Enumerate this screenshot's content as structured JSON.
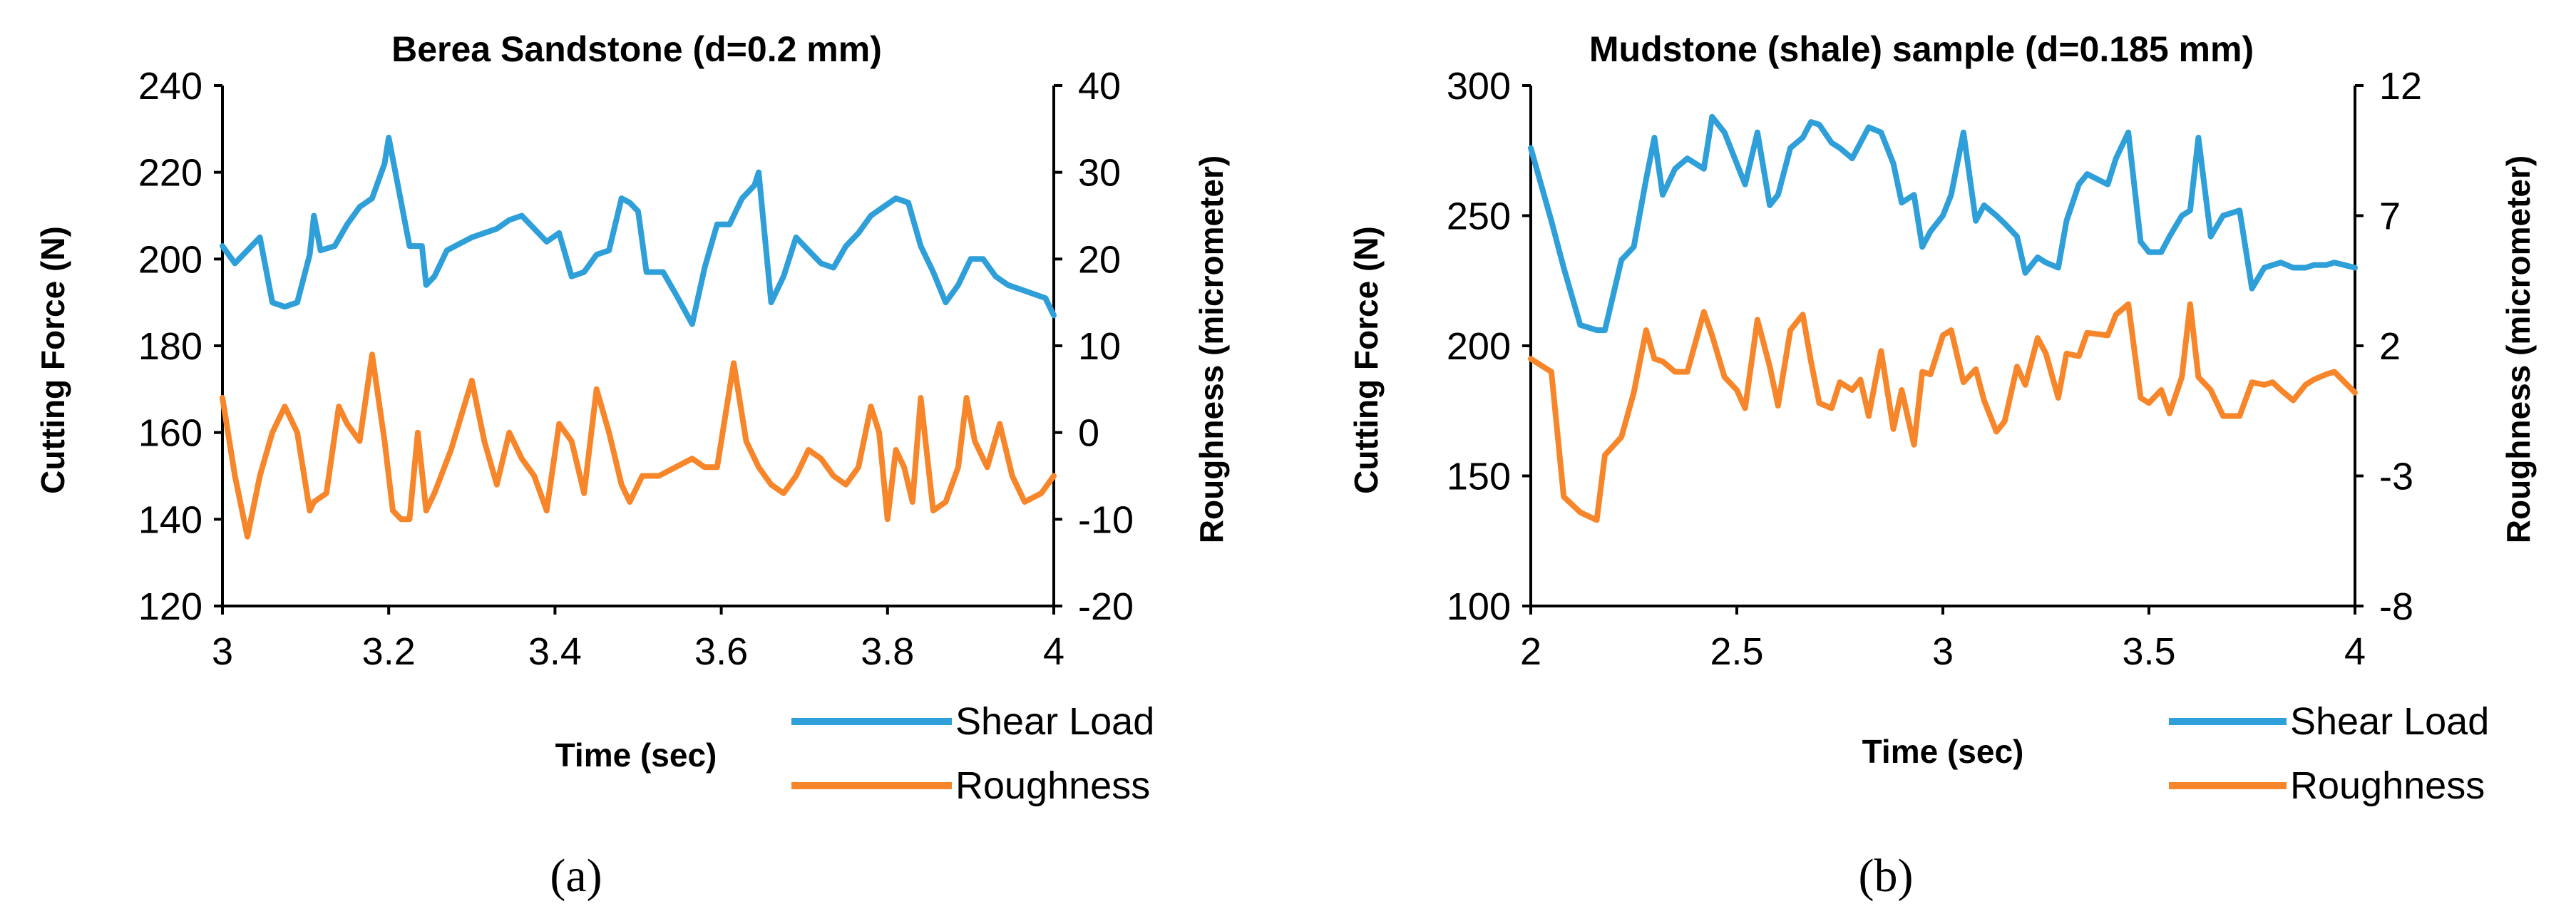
{
  "colors": {
    "shear": "#2e9fd9",
    "roughness": "#f7862a",
    "axis": "#000000"
  },
  "legend": {
    "shear_label": "Shear Load",
    "roughness_label": "Roughness"
  },
  "captions": [
    "(a)",
    "(b)"
  ],
  "chart_data": [
    {
      "type": "line",
      "title": "Berea Sandstone (d=0.2 mm)",
      "xlabel": "Time (sec)",
      "ylabel": "Cutting Force (N)",
      "y2label": "Roughness (micrometer)",
      "xlim": [
        3,
        4
      ],
      "ylim": [
        120,
        240
      ],
      "y2lim": [
        -20,
        40
      ],
      "xticks": [
        "3",
        "3.2",
        "3.4",
        "3.6",
        "3.8",
        "4"
      ],
      "xtick_values": [
        3,
        3.2,
        3.4,
        3.6,
        3.8,
        4
      ],
      "yticks": [
        120,
        140,
        160,
        180,
        200,
        220,
        240
      ],
      "y2ticks": [
        -20,
        -10,
        0,
        10,
        20,
        30,
        40
      ],
      "series": [
        {
          "name": "Shear Load",
          "axis": "left",
          "x": [
            3.0,
            3.015,
            3.03,
            3.045,
            3.06,
            3.075,
            3.09,
            3.105,
            3.11,
            3.118,
            3.135,
            3.15,
            3.165,
            3.18,
            3.195,
            3.2,
            3.21,
            3.225,
            3.24,
            3.245,
            3.255,
            3.27,
            3.3,
            3.33,
            3.345,
            3.36,
            3.375,
            3.39,
            3.405,
            3.42,
            3.435,
            3.45,
            3.465,
            3.48,
            3.49,
            3.5,
            3.51,
            3.515,
            3.53,
            3.545,
            3.565,
            3.58,
            3.595,
            3.61,
            3.625,
            3.64,
            3.645,
            3.66,
            3.675,
            3.69,
            3.705,
            3.72,
            3.735,
            3.75,
            3.765,
            3.78,
            3.795,
            3.81,
            3.825,
            3.84,
            3.855,
            3.87,
            3.885,
            3.9,
            3.915,
            3.93,
            3.945,
            3.96,
            3.975,
            3.99,
            4.0
          ],
          "y": [
            203,
            199,
            202,
            205,
            190,
            189,
            190,
            201,
            210,
            202,
            203,
            208,
            212,
            214,
            222,
            228,
            218,
            203,
            203,
            194,
            196,
            202,
            205,
            207,
            209,
            210,
            207,
            204,
            206,
            196,
            197,
            201,
            202,
            214,
            213,
            211,
            197,
            197,
            197,
            192,
            185,
            198,
            208,
            208,
            214,
            217,
            220,
            190,
            196,
            205,
            202,
            199,
            198,
            203,
            206,
            210,
            212,
            214,
            213,
            203,
            197,
            190,
            194,
            200,
            200,
            196,
            194,
            193,
            192,
            191,
            187
          ]
        },
        {
          "name": "Roughness",
          "axis": "right",
          "x": [
            3.0,
            3.015,
            3.03,
            3.045,
            3.06,
            3.075,
            3.09,
            3.105,
            3.11,
            3.125,
            3.14,
            3.15,
            3.165,
            3.18,
            3.195,
            3.205,
            3.215,
            3.225,
            3.235,
            3.245,
            3.255,
            3.275,
            3.3,
            3.315,
            3.33,
            3.345,
            3.36,
            3.375,
            3.39,
            3.405,
            3.42,
            3.435,
            3.45,
            3.465,
            3.48,
            3.49,
            3.505,
            3.525,
            3.545,
            3.565,
            3.58,
            3.595,
            3.615,
            3.63,
            3.645,
            3.66,
            3.675,
            3.69,
            3.705,
            3.72,
            3.735,
            3.75,
            3.765,
            3.78,
            3.79,
            3.8,
            3.81,
            3.82,
            3.83,
            3.84,
            3.855,
            3.87,
            3.885,
            3.895,
            3.905,
            3.92,
            3.935,
            3.95,
            3.965,
            3.985,
            4.0
          ],
          "y": [
            4,
            -5,
            -12,
            -5,
            0,
            3,
            0,
            -9,
            -8,
            -7,
            3,
            1,
            -1,
            9,
            -1,
            -9,
            -10,
            -10,
            0,
            -9,
            -7,
            -2,
            6,
            -1,
            -6,
            0,
            -3,
            -5,
            -9,
            1,
            -1,
            -7,
            5,
            0,
            -6,
            -8,
            -5,
            -5,
            -4,
            -3,
            -4,
            -4,
            8,
            -1,
            -4,
            -6,
            -7,
            -5,
            -2,
            -3,
            -5,
            -6,
            -4,
            3,
            0,
            -10,
            -2,
            -4,
            -8,
            4,
            -9,
            -8,
            -4,
            4,
            -1,
            -4,
            1,
            -5,
            -8,
            -7,
            -5
          ]
        }
      ]
    },
    {
      "type": "line",
      "title": "Mudstone (shale) sample (d=0.185 mm)",
      "xlabel": "Time (sec)",
      "ylabel": "Cutting Force (N)",
      "y2label": "Roughness (micrometer)",
      "xlim": [
        2,
        4
      ],
      "ylim": [
        100,
        300
      ],
      "y2lim": [
        -8,
        12
      ],
      "xticks": [
        "2",
        "2.5",
        "3",
        "3.5",
        "4"
      ],
      "xtick_values": [
        2,
        2.5,
        3,
        3.5,
        4
      ],
      "yticks": [
        100,
        150,
        200,
        250,
        300
      ],
      "y2ticks": [
        -8,
        -3,
        2,
        7,
        12
      ],
      "series": [
        {
          "name": "Shear Load",
          "axis": "left",
          "x": [
            2.0,
            2.05,
            2.08,
            2.12,
            2.16,
            2.18,
            2.22,
            2.25,
            2.28,
            2.3,
            2.32,
            2.35,
            2.38,
            2.42,
            2.44,
            2.47,
            2.5,
            2.52,
            2.55,
            2.58,
            2.6,
            2.63,
            2.66,
            2.68,
            2.7,
            2.73,
            2.75,
            2.78,
            2.8,
            2.82,
            2.85,
            2.88,
            2.9,
            2.93,
            2.95,
            2.97,
            3.0,
            3.02,
            3.05,
            3.08,
            3.1,
            3.13,
            3.15,
            3.18,
            3.2,
            3.23,
            3.25,
            3.28,
            3.3,
            3.33,
            3.35,
            3.4,
            3.42,
            3.45,
            3.48,
            3.5,
            3.53,
            3.55,
            3.58,
            3.6,
            3.62,
            3.65,
            3.68,
            3.72,
            3.75,
            3.78,
            3.8,
            3.82,
            3.85,
            3.88,
            3.9,
            3.93,
            3.95,
            4.0
          ],
          "y": [
            276,
            248,
            230,
            208,
            206,
            206,
            233,
            238,
            264,
            280,
            258,
            268,
            272,
            268,
            288,
            282,
            270,
            262,
            282,
            254,
            258,
            276,
            280,
            286,
            285,
            278,
            276,
            272,
            278,
            284,
            282,
            270,
            255,
            258,
            238,
            244,
            250,
            258,
            282,
            248,
            254,
            250,
            247,
            242,
            228,
            234,
            232,
            230,
            248,
            262,
            266,
            262,
            272,
            282,
            240,
            236,
            236,
            242,
            250,
            252,
            280,
            242,
            250,
            252,
            222,
            230,
            231,
            232,
            230,
            230,
            231,
            231,
            232,
            230
          ]
        },
        {
          "name": "Roughness",
          "axis": "right",
          "x": [
            2.0,
            2.05,
            2.08,
            2.12,
            2.16,
            2.18,
            2.22,
            2.25,
            2.28,
            2.3,
            2.32,
            2.35,
            2.38,
            2.42,
            2.44,
            2.47,
            2.5,
            2.52,
            2.55,
            2.58,
            2.6,
            2.63,
            2.66,
            2.68,
            2.7,
            2.73,
            2.75,
            2.78,
            2.8,
            2.82,
            2.85,
            2.88,
            2.9,
            2.93,
            2.95,
            2.97,
            3.0,
            3.02,
            3.05,
            3.08,
            3.1,
            3.13,
            3.15,
            3.18,
            3.2,
            3.23,
            3.25,
            3.28,
            3.3,
            3.33,
            3.35,
            3.4,
            3.42,
            3.45,
            3.48,
            3.5,
            3.53,
            3.55,
            3.58,
            3.6,
            3.62,
            3.65,
            3.68,
            3.72,
            3.75,
            3.78,
            3.8,
            3.82,
            3.85,
            3.88,
            3.9,
            3.93,
            3.95,
            4.0
          ],
          "y": [
            1.5,
            1.0,
            -3.8,
            -4.4,
            -4.7,
            -2.2,
            -1.5,
            0.2,
            2.6,
            1.5,
            1.4,
            1.0,
            1.0,
            3.3,
            2.4,
            0.8,
            0.3,
            -0.4,
            3.0,
            1.2,
            -0.3,
            2.6,
            3.2,
            1.4,
            -0.2,
            -0.4,
            0.6,
            0.3,
            0.7,
            -0.7,
            1.8,
            -1.2,
            0.3,
            -1.8,
            1.0,
            0.9,
            2.4,
            2.6,
            0.6,
            1.1,
            -0.1,
            -1.3,
            -0.9,
            1.2,
            0.5,
            2.3,
            1.7,
            0.0,
            1.7,
            1.6,
            2.5,
            2.4,
            3.2,
            3.6,
            0.0,
            -0.2,
            0.3,
            -0.6,
            0.8,
            3.6,
            0.8,
            0.3,
            -0.7,
            -0.7,
            0.6,
            0.5,
            0.6,
            0.3,
            -0.1,
            0.5,
            0.7,
            0.9,
            1.0,
            0.2
          ]
        }
      ]
    }
  ]
}
